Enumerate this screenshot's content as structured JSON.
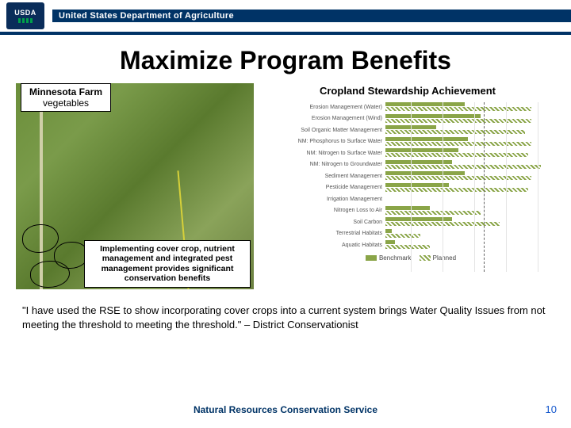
{
  "header": {
    "badge_text": "USDA",
    "dept": "United States Department of Agriculture"
  },
  "title": "Maximize Program Benefits",
  "farm": {
    "name": "Minnesota Farm",
    "crop": "vegetables"
  },
  "impl_text": "Implementing cover crop, nutrient management and integrated pest management provides significant conservation benefits",
  "chart": {
    "title": "Cropland Stewardship Achievement",
    "xmax": 100,
    "grid_at": [
      20,
      40,
      60,
      80,
      100
    ],
    "dashed_at": 66,
    "bar_color": "#8aa548",
    "categories": [
      {
        "label": "Erosion Management (Water)",
        "benchmark": 50,
        "planned": 92
      },
      {
        "label": "Erosion Management (Wind)",
        "benchmark": 60,
        "planned": 92
      },
      {
        "label": "Soil Organic Matter Management",
        "benchmark": 32,
        "planned": 88
      },
      {
        "label": "NM: Phosphorus to Surface Water",
        "benchmark": 52,
        "planned": 92
      },
      {
        "label": "NM: Nitrogen to Surface Water",
        "benchmark": 46,
        "planned": 90
      },
      {
        "label": "NM: Nitrogen to Groundwater",
        "benchmark": 42,
        "planned": 98
      },
      {
        "label": "Sediment Management",
        "benchmark": 50,
        "planned": 92
      },
      {
        "label": "Pesticide Management",
        "benchmark": 40,
        "planned": 90
      },
      {
        "label": "Irrigation Management",
        "benchmark": 0,
        "planned": 0
      },
      {
        "label": "Nitrogen Loss to Air",
        "benchmark": 28,
        "planned": 60
      },
      {
        "label": "Soil Carbon",
        "benchmark": 42,
        "planned": 72
      },
      {
        "label": "Terrestrial Habitats",
        "benchmark": 4,
        "planned": 22
      },
      {
        "label": "Aquatic Habitats",
        "benchmark": 6,
        "planned": 28
      }
    ],
    "legend": {
      "a": "Benchmark",
      "b": "Planned"
    }
  },
  "quote": "\"I have used the RSE to show incorporating cover crops into a current system brings Water Quality Issues from not meeting the threshold to meeting the threshold.\" –  District Conservationist",
  "footer": "Natural Resources Conservation Service",
  "page": "10"
}
